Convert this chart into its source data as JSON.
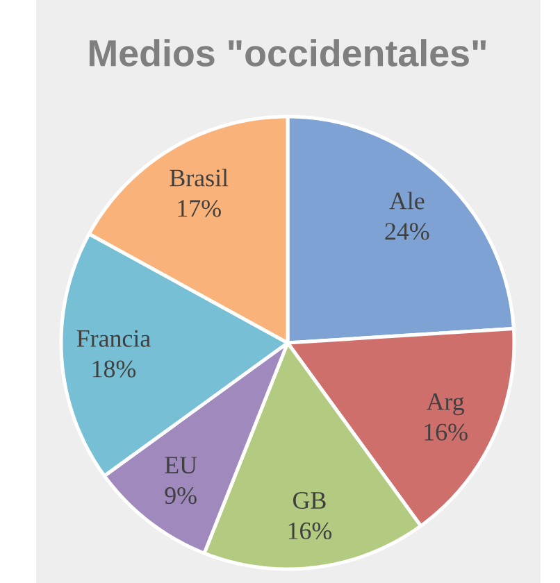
{
  "chart_data": {
    "type": "pie",
    "title": "Medios \"occidentales\"",
    "categories": [
      "Ale",
      "Arg",
      "GB",
      "EU",
      "Francia",
      "Brasil"
    ],
    "values": [
      24,
      16,
      16,
      9,
      18,
      17
    ],
    "value_labels": [
      "24%",
      "16%",
      "16%",
      "9%",
      "18%",
      "17%"
    ],
    "colors": [
      "#7ea2d3",
      "#cf6f6c",
      "#b3cb80",
      "#9f89bd",
      "#77bfd5",
      "#f8b27a"
    ]
  }
}
